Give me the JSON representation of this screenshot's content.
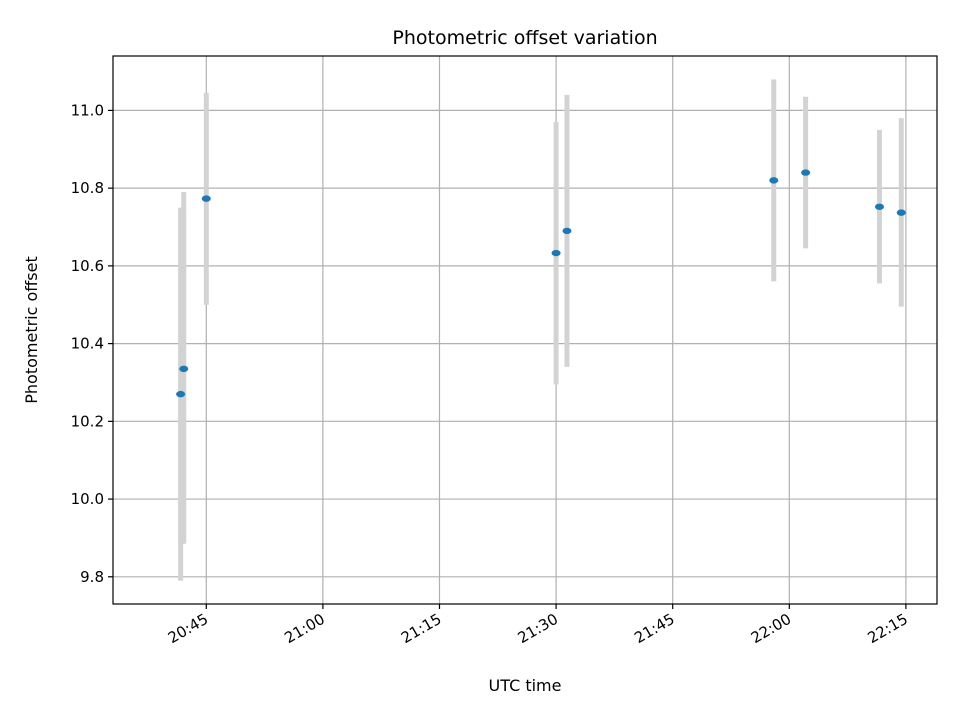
{
  "chart_data": {
    "type": "scatter",
    "title": "Photometric offset variation",
    "xlabel": "UTC time",
    "ylabel": "Photometric offset",
    "x_ticks": [
      "20:45",
      "21:00",
      "21:15",
      "21:30",
      "21:45",
      "22:00",
      "22:15"
    ],
    "y_ticks": [
      "9.8",
      "10.0",
      "10.2",
      "10.4",
      "10.6",
      "10.8",
      "11.0"
    ],
    "xlim": [
      "20:33",
      "22:19"
    ],
    "ylim": [
      9.73,
      11.14
    ],
    "grid": true,
    "colors": {
      "points": "#1f77b4",
      "errorbars": "#d3d3d3",
      "grid": "#b0b0b0"
    },
    "points": [
      {
        "x": "20:41.7",
        "y": 10.27,
        "yerr_low": 9.79,
        "yerr_high": 10.75
      },
      {
        "x": "20:42.1",
        "y": 10.335,
        "yerr_low": 9.885,
        "yerr_high": 10.79
      },
      {
        "x": "20:45.0",
        "y": 10.773,
        "yerr_low": 10.5,
        "yerr_high": 11.045
      },
      {
        "x": "21:30.0",
        "y": 10.633,
        "yerr_low": 10.295,
        "yerr_high": 10.97
      },
      {
        "x": "21:31.4",
        "y": 10.69,
        "yerr_low": 10.34,
        "yerr_high": 11.04
      },
      {
        "x": "21:58.0",
        "y": 10.82,
        "yerr_low": 10.56,
        "yerr_high": 11.08
      },
      {
        "x": "22:02.1",
        "y": 10.84,
        "yerr_low": 10.645,
        "yerr_high": 11.035
      },
      {
        "x": "22:11.6",
        "y": 10.752,
        "yerr_low": 10.555,
        "yerr_high": 10.95
      },
      {
        "x": "22:14.4",
        "y": 10.737,
        "yerr_low": 10.495,
        "yerr_high": 10.98
      }
    ]
  }
}
